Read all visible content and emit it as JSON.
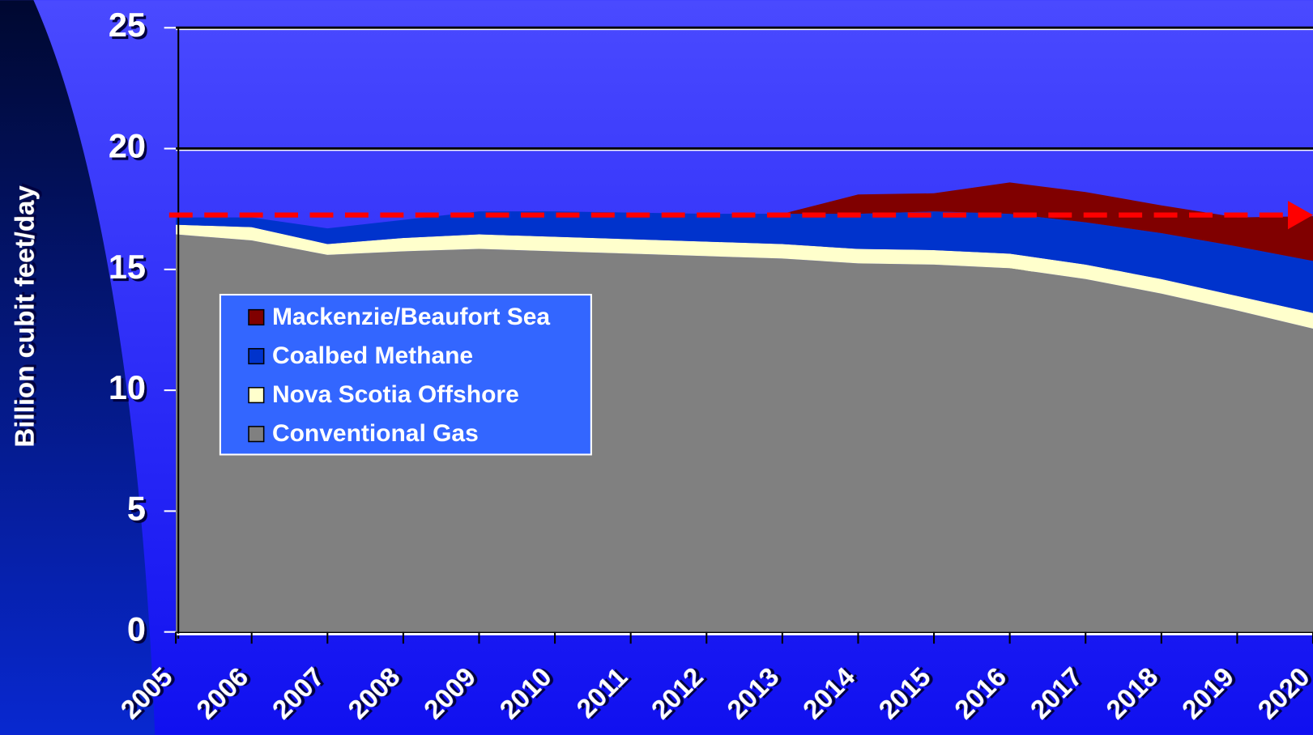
{
  "chart_data": {
    "type": "stacked_area",
    "y_label": "Billion cubit feet/day",
    "categories": [
      "2005",
      "2006",
      "2007",
      "2008",
      "2009",
      "2010",
      "2011",
      "2012",
      "2013",
      "2014",
      "2015",
      "2016",
      "2017",
      "2018",
      "2019",
      "2020"
    ],
    "series": [
      {
        "name": "Conventional Gas",
        "color": "#808080",
        "values": [
          16.45,
          16.2,
          15.6,
          15.75,
          15.85,
          15.75,
          15.65,
          15.55,
          15.45,
          15.25,
          15.2,
          15.05,
          14.6,
          14.0,
          13.3,
          12.55
        ]
      },
      {
        "name": "Nova Scotia Offshore",
        "color": "#ffffcc",
        "values": [
          0.4,
          0.55,
          0.45,
          0.55,
          0.6,
          0.6,
          0.6,
          0.6,
          0.6,
          0.6,
          0.6,
          0.6,
          0.6,
          0.6,
          0.6,
          0.65
        ]
      },
      {
        "name": "Coalbed Methane",
        "color": "#0033cc",
        "values": [
          0.3,
          0.4,
          0.65,
          0.75,
          0.95,
          1.05,
          1.1,
          1.15,
          1.25,
          1.45,
          1.6,
          1.65,
          1.75,
          1.9,
          2.05,
          2.15
        ]
      },
      {
        "name": "Mackenzie/Beaufort Sea",
        "color": "#800000",
        "values": [
          0,
          0,
          0,
          0,
          0,
          0,
          0,
          0,
          0,
          0.8,
          0.75,
          1.3,
          1.25,
          1.15,
          1.2,
          1.85
        ]
      }
    ],
    "reference_line": {
      "value": 17.25,
      "color": "#ff0000"
    },
    "ylim": [
      0,
      25
    ],
    "yticks": [
      0,
      5,
      10,
      15,
      20,
      25
    ],
    "grid": true
  }
}
